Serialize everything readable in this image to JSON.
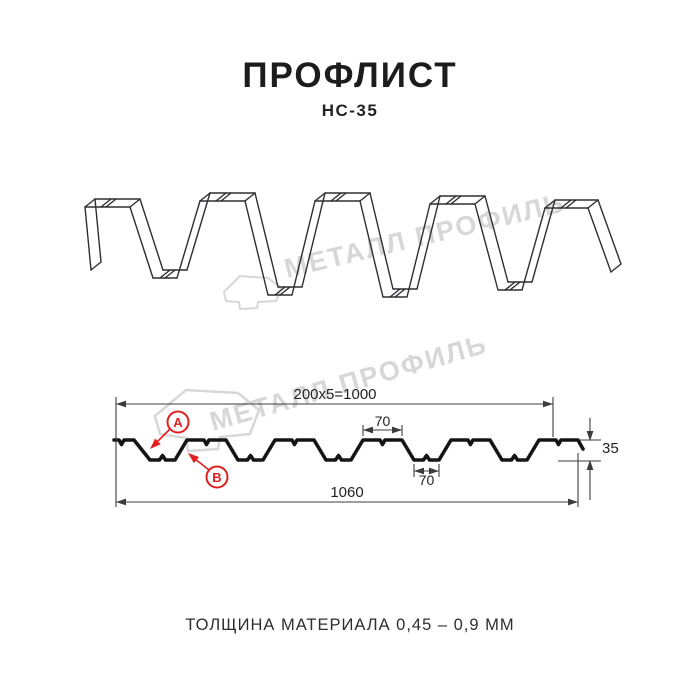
{
  "header": {
    "title": "ПРОФЛИСТ",
    "subtitle": "НС-35"
  },
  "watermark": {
    "brand": "МЕТАЛЛ ПРОФИЛЬ",
    "logo": "metall-profil-logo"
  },
  "cross_section": {
    "dim_module": "200x5=1000",
    "dim_crest_top": "70",
    "dim_trough": "70",
    "dim_total_width": "1060",
    "dim_height": "35",
    "label_crest": "А",
    "label_trough": "В"
  },
  "footer": {
    "thickness_note": "ТОЛЩИНА МАТЕРИАЛА 0,45 – 0,9 ММ"
  },
  "colors": {
    "accent_red": "#e01f1f",
    "line_dark": "#2b2b30",
    "watermark_gray": "#d7d7d7"
  }
}
